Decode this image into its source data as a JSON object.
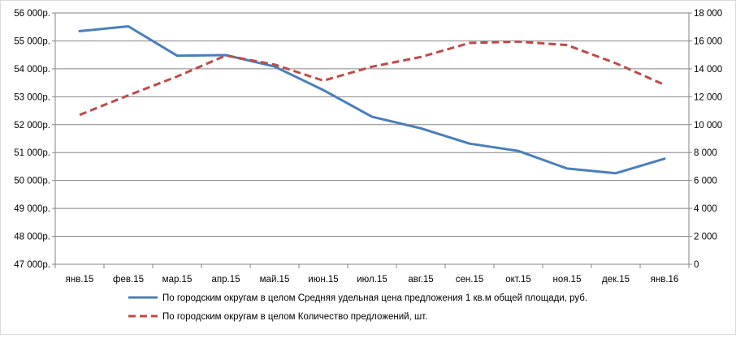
{
  "chart_data": {
    "type": "line",
    "categories": [
      "янв.15",
      "фев.15",
      "мар.15",
      "апр.15",
      "май.15",
      "июн.15",
      "июл.15",
      "авг.15",
      "сен.15",
      "окт.15",
      "ноя.15",
      "дек.15",
      "янв.16"
    ],
    "y_left": {
      "ticks": [
        "47 000р.",
        "48 000р.",
        "49 000р.",
        "50 000р.",
        "51 000р.",
        "52 000р.",
        "53 000р.",
        "54 000р.",
        "55 000р.",
        "56 000р."
      ],
      "ylim": [
        47000,
        56000
      ]
    },
    "y_right": {
      "ticks": [
        "0",
        "2 000",
        "4 000",
        "6 000",
        "8 000",
        "10 000",
        "12 000",
        "14 000",
        "16 000",
        "18 000"
      ],
      "ylim": [
        0,
        18000
      ]
    },
    "series": [
      {
        "name": "По городским округам в целом Средняя удельная цена предложения  1 кв.м общей площади, руб.",
        "axis": "left",
        "style": "solid",
        "color": "#4a7ebb",
        "values": [
          55350,
          55520,
          54470,
          54490,
          54080,
          53240,
          52280,
          51870,
          51320,
          51060,
          50430,
          50260,
          50780
        ]
      },
      {
        "name": "По городским округам в целом Количество предложений, шт.",
        "axis": "right",
        "style": "dashed",
        "color": "#be4b48",
        "values": [
          10700,
          12100,
          13450,
          14950,
          14300,
          13150,
          14150,
          14850,
          15850,
          15950,
          15700,
          14400,
          12850
        ]
      }
    ],
    "legend_position": "bottom",
    "grid": "horizontal"
  }
}
